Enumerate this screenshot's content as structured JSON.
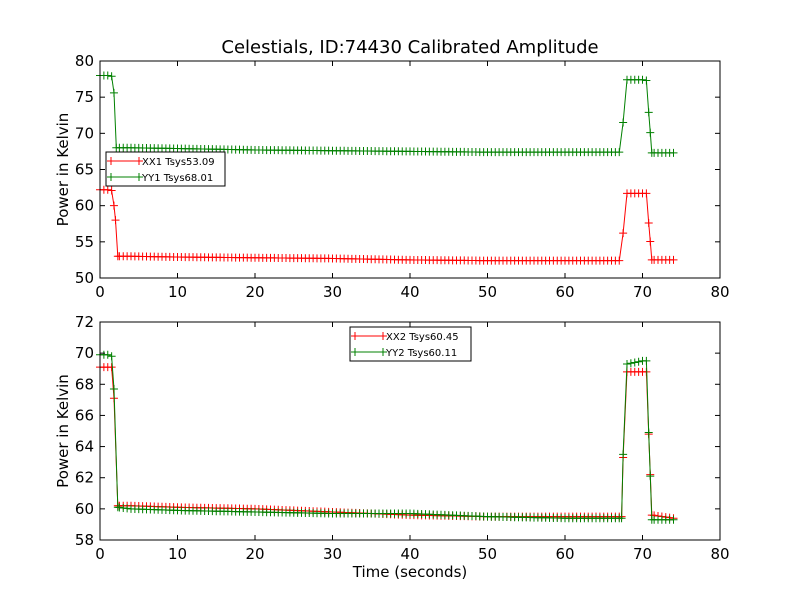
{
  "title": "Celestials, ID:74430 Calibrated Amplitude",
  "colors": {
    "xx": "#ff0000",
    "yy": "#008000"
  },
  "chart_data": [
    {
      "type": "line",
      "ylabel": "Power in Kelvin",
      "xlabel": "",
      "xlim": [
        0,
        80
      ],
      "ylim": [
        50,
        80
      ],
      "xticks": [
        0,
        10,
        20,
        30,
        40,
        50,
        60,
        70,
        80
      ],
      "yticks": [
        50,
        55,
        60,
        65,
        70,
        75,
        80
      ],
      "legend_position": "center-left",
      "series": [
        {
          "name": "XX1 Tsys53.09",
          "color": "#ff0000",
          "marker": "+",
          "points": [
            [
              0,
              62.2
            ],
            [
              0.5,
              62.2
            ],
            [
              1,
              62.2
            ],
            [
              1.5,
              62.1
            ],
            [
              1.8,
              60
            ],
            [
              2,
              58
            ],
            [
              2.3,
              53
            ],
            [
              4,
              53
            ],
            [
              10,
              52.9
            ],
            [
              20,
              52.8
            ],
            [
              30,
              52.7
            ],
            [
              40,
              52.5
            ],
            [
              50,
              52.4
            ],
            [
              60,
              52.4
            ],
            [
              67,
              52.4
            ],
            [
              67.5,
              56.2
            ],
            [
              68,
              61.7
            ],
            [
              69,
              61.7
            ],
            [
              70,
              61.7
            ],
            [
              70.5,
              61.7
            ],
            [
              70.8,
              57.6
            ],
            [
              71.2,
              52.5
            ],
            [
              74,
              52.5
            ]
          ]
        },
        {
          "name": "YY1 Tsys68.01",
          "color": "#008000",
          "marker": "+",
          "points": [
            [
              0,
              78
            ],
            [
              0.5,
              78
            ],
            [
              1,
              78
            ],
            [
              1.5,
              77.9
            ],
            [
              1.8,
              75.6
            ],
            [
              2.1,
              68
            ],
            [
              4,
              68
            ],
            [
              10,
              67.9
            ],
            [
              20,
              67.7
            ],
            [
              30,
              67.6
            ],
            [
              40,
              67.5
            ],
            [
              50,
              67.4
            ],
            [
              60,
              67.4
            ],
            [
              67,
              67.4
            ],
            [
              67.5,
              71.5
            ],
            [
              68,
              77.4
            ],
            [
              69,
              77.4
            ],
            [
              70,
              77.4
            ],
            [
              70.5,
              77.3
            ],
            [
              70.8,
              72.9
            ],
            [
              71.2,
              67.3
            ],
            [
              74,
              67.3
            ]
          ]
        }
      ]
    },
    {
      "type": "line",
      "ylabel": "Power in Kelvin",
      "xlabel": "Time (seconds)",
      "xlim": [
        0,
        80
      ],
      "ylim": [
        58,
        72
      ],
      "xticks": [
        0,
        10,
        20,
        30,
        40,
        50,
        60,
        70,
        80
      ],
      "yticks": [
        58,
        60,
        62,
        64,
        66,
        68,
        70,
        72
      ],
      "legend_position": "top-center",
      "series": [
        {
          "name": "XX2 Tsys60.45",
          "color": "#ff0000",
          "marker": "+",
          "points": [
            [
              0,
              69.1
            ],
            [
              0.5,
              69.1
            ],
            [
              1,
              69.1
            ],
            [
              1.5,
              69.1
            ],
            [
              1.8,
              67.1
            ],
            [
              2.3,
              60.2
            ],
            [
              4,
              60.2
            ],
            [
              10,
              60.1
            ],
            [
              20,
              60
            ],
            [
              30,
              59.8
            ],
            [
              40,
              59.6
            ],
            [
              50,
              59.5
            ],
            [
              60,
              59.5
            ],
            [
              67.3,
              59.5
            ],
            [
              67.5,
              63.3
            ],
            [
              68,
              68.8
            ],
            [
              69,
              68.8
            ],
            [
              70,
              68.8
            ],
            [
              70.5,
              68.8
            ],
            [
              70.8,
              64.8
            ],
            [
              71.2,
              59.6
            ],
            [
              74,
              59.4
            ]
          ]
        },
        {
          "name": "YY2 Tsys60.11",
          "color": "#008000",
          "marker": "+",
          "points": [
            [
              0,
              69.9
            ],
            [
              0.5,
              69.9
            ],
            [
              1,
              69.9
            ],
            [
              1.5,
              69.8
            ],
            [
              1.8,
              67.7
            ],
            [
              2.3,
              60.1
            ],
            [
              4,
              60
            ],
            [
              10,
              59.9
            ],
            [
              20,
              59.8
            ],
            [
              30,
              59.7
            ],
            [
              40,
              59.7
            ],
            [
              50,
              59.5
            ],
            [
              60,
              59.4
            ],
            [
              67.3,
              59.4
            ],
            [
              67.5,
              63.5
            ],
            [
              68,
              69.3
            ],
            [
              69,
              69.4
            ],
            [
              70,
              69.5
            ],
            [
              70.5,
              69.5
            ],
            [
              70.8,
              64.9
            ],
            [
              71.2,
              59.3
            ],
            [
              74,
              59.3
            ]
          ]
        }
      ]
    }
  ]
}
